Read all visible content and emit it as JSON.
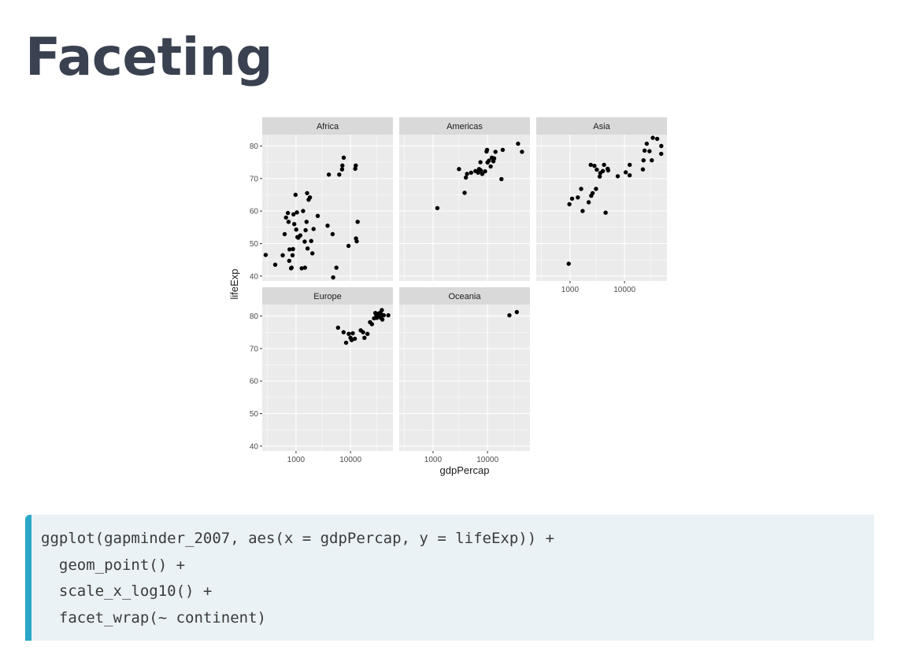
{
  "slide": {
    "title": "Faceting"
  },
  "code": [
    "ggplot(gapminder_2007, aes(x = gdpPercap, y = lifeExp)) +",
    "  geom_point() +",
    "  scale_x_log10() +",
    "  facet_wrap(~ continent)"
  ],
  "colors": {
    "panel": "#ebebeb",
    "strip": "#d9d9d9",
    "grid": "#ffffff",
    "point": "#000000",
    "accent": "#2aa6c9"
  },
  "chart_data": {
    "type": "scatter",
    "xlabel": "gdpPercap",
    "ylabel": "lifeExp",
    "x_scale": "log10",
    "xlim": [
      240,
      60000
    ],
    "ylim": [
      38.5,
      83.5
    ],
    "x_ticks": [
      1000,
      10000
    ],
    "x_tick_labels": [
      "1000",
      "10000"
    ],
    "y_ticks": [
      40,
      50,
      60,
      70,
      80
    ],
    "y_tick_labels": [
      "40",
      "50",
      "60",
      "70",
      "80"
    ],
    "facet_layout": {
      "columns": 3,
      "rows": 2
    },
    "facets": [
      {
        "name": "Africa",
        "points": [
          [
            278,
            46.5
          ],
          [
            415,
            43.5
          ],
          [
            570,
            46.4
          ],
          [
            620,
            52.9
          ],
          [
            655,
            58.0
          ],
          [
            710,
            59.4
          ],
          [
            730,
            56.7
          ],
          [
            750,
            44.7
          ],
          [
            760,
            48.2
          ],
          [
            810,
            42.4
          ],
          [
            830,
            42.6
          ],
          [
            863,
            46.4
          ],
          [
            880,
            48.3
          ],
          [
            900,
            59.0
          ],
          [
            930,
            56.0
          ],
          [
            980,
            65.0
          ],
          [
            1010,
            54.3
          ],
          [
            1040,
            59.6
          ],
          [
            1060,
            52.0
          ],
          [
            1100,
            51.8
          ],
          [
            1200,
            52.5
          ],
          [
            1270,
            42.4
          ],
          [
            1350,
            60.0
          ],
          [
            1440,
            50.6
          ],
          [
            1460,
            42.6
          ],
          [
            1500,
            54.1
          ],
          [
            1560,
            56.7
          ],
          [
            1600,
            65.5
          ],
          [
            1630,
            48.5
          ],
          [
            1700,
            63.5
          ],
          [
            1800,
            64.2
          ],
          [
            1900,
            50.8
          ],
          [
            2000,
            47.0
          ],
          [
            2100,
            54.5
          ],
          [
            2500,
            58.5
          ],
          [
            3800,
            55.5
          ],
          [
            4000,
            71.2
          ],
          [
            4700,
            52.9
          ],
          [
            5500,
            42.6
          ],
          [
            6200,
            71.2
          ],
          [
            7000,
            72.8
          ],
          [
            7100,
            74.0
          ],
          [
            7500,
            76.4
          ],
          [
            9200,
            49.3
          ],
          [
            12200,
            73.0
          ],
          [
            12500,
            74.0
          ],
          [
            12600,
            51.6
          ],
          [
            13000,
            50.7
          ],
          [
            13500,
            56.7
          ],
          [
            4800,
            39.6
          ]
        ]
      },
      {
        "name": "Americas",
        "points": [
          [
            1200,
            60.9
          ],
          [
            3000,
            72.9
          ],
          [
            3800,
            65.6
          ],
          [
            4000,
            70.3
          ],
          [
            4200,
            71.4
          ],
          [
            5000,
            71.8
          ],
          [
            6000,
            72.3
          ],
          [
            6700,
            71.8
          ],
          [
            7000,
            72.9
          ],
          [
            7400,
            75.0
          ],
          [
            7500,
            72.5
          ],
          [
            8000,
            71.4
          ],
          [
            9000,
            72.2
          ],
          [
            9600,
            78.3
          ],
          [
            9800,
            78.8
          ],
          [
            10000,
            74.9
          ],
          [
            10600,
            75.5
          ],
          [
            11400,
            73.7
          ],
          [
            12000,
            76.4
          ],
          [
            12800,
            75.3
          ],
          [
            13200,
            76.2
          ],
          [
            14000,
            78.2
          ],
          [
            18000,
            69.8
          ],
          [
            19000,
            78.8
          ],
          [
            36300,
            80.7
          ],
          [
            42950,
            78.2
          ]
        ]
      },
      {
        "name": "Asia",
        "points": [
          [
            944,
            43.8
          ],
          [
            974,
            62.1
          ],
          [
            1090,
            63.8
          ],
          [
            1390,
            64.2
          ],
          [
            1600,
            66.8
          ],
          [
            1700,
            60.0
          ],
          [
            2200,
            62.7
          ],
          [
            2450,
            64.7
          ],
          [
            2600,
            65.5
          ],
          [
            3000,
            66.8
          ],
          [
            2400,
            74.2
          ],
          [
            2800,
            73.9
          ],
          [
            3100,
            72.7
          ],
          [
            3500,
            70.6
          ],
          [
            3600,
            71.7
          ],
          [
            4000,
            72.3
          ],
          [
            4200,
            74.2
          ],
          [
            4500,
            59.5
          ],
          [
            4900,
            73.0
          ],
          [
            5000,
            72.5
          ],
          [
            7500,
            70.7
          ],
          [
            10500,
            71.9
          ],
          [
            12400,
            71.0
          ],
          [
            12450,
            74.2
          ],
          [
            21650,
            72.8
          ],
          [
            22300,
            75.6
          ],
          [
            23300,
            78.6
          ],
          [
            25500,
            80.7
          ],
          [
            28700,
            78.4
          ],
          [
            31600,
            75.6
          ],
          [
            33000,
            82.5
          ],
          [
            39700,
            82.2
          ],
          [
            47300,
            80.0
          ],
          [
            47000,
            77.6
          ]
        ]
      },
      {
        "name": "Europe",
        "points": [
          [
            5900,
            76.4
          ],
          [
            7450,
            75.0
          ],
          [
            8300,
            71.8
          ],
          [
            9300,
            74.5
          ],
          [
            10000,
            73.3
          ],
          [
            10500,
            72.6
          ],
          [
            11000,
            74.7
          ],
          [
            12000,
            73.0
          ],
          [
            15400,
            75.6
          ],
          [
            17000,
            75.0
          ],
          [
            18000,
            73.3
          ],
          [
            20500,
            74.5
          ],
          [
            22800,
            78.1
          ],
          [
            24700,
            77.5
          ],
          [
            27000,
            79.3
          ],
          [
            28600,
            80.9
          ],
          [
            29800,
            80.2
          ],
          [
            30470,
            79.4
          ],
          [
            32170,
            80.7
          ],
          [
            33200,
            80.5
          ],
          [
            33690,
            79.8
          ],
          [
            34400,
            80.9
          ],
          [
            35300,
            79.8
          ],
          [
            36180,
            79.4
          ],
          [
            36800,
            80.5
          ],
          [
            37500,
            81.8
          ],
          [
            38400,
            78.9
          ],
          [
            40700,
            80.2
          ],
          [
            49350,
            80.2
          ]
        ]
      },
      {
        "name": "Oceania",
        "points": [
          [
            25200,
            80.2
          ],
          [
            34400,
            81.2
          ]
        ]
      }
    ]
  }
}
